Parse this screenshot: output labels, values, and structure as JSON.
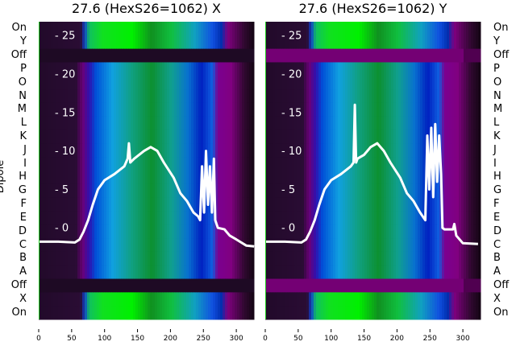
{
  "chart_data": [
    {
      "type": "heatmap",
      "title": "27.6 (HexS26=1062) X",
      "ylabel": "Dipole",
      "row_labels": [
        "On",
        "Y",
        "Off",
        "P",
        "O",
        "N",
        "M",
        "L",
        "K",
        "J",
        "I",
        "H",
        "G",
        "F",
        "E",
        "D",
        "C",
        "B",
        "A",
        "Off",
        "X",
        "On"
      ],
      "row_bands": [
        "on",
        "on",
        "off",
        "main",
        "main",
        "main",
        "main",
        "main",
        "main",
        "main",
        "main",
        "main",
        "main",
        "main",
        "main",
        "main",
        "main",
        "main",
        "main",
        "off",
        "on",
        "on"
      ],
      "off_color": "#1e0a24",
      "x_ticks": [
        "0",
        "50",
        "100",
        "150",
        "200",
        "250",
        "300"
      ],
      "xlim": [
        0,
        327
      ],
      "overlay_yticks": [
        "0",
        "5",
        "10",
        "15",
        "20",
        "25"
      ],
      "overlay_ylim": [
        -11.9,
        26.8
      ],
      "line": {
        "color": "#ffffff",
        "x": [
          0,
          30,
          55,
          62,
          68,
          75,
          82,
          90,
          100,
          115,
          130,
          135,
          137,
          139,
          145,
          160,
          170,
          180,
          190,
          205,
          215,
          225,
          235,
          242,
          245,
          248,
          251,
          254,
          257,
          260,
          263,
          266,
          268,
          272,
          282,
          290,
          300,
          315,
          327
        ],
        "y": [
          -1.8,
          -1.8,
          -1.9,
          -1.5,
          -0.5,
          1,
          3,
          5,
          6.2,
          7,
          8,
          9,
          11,
          8.5,
          9,
          10,
          10.5,
          10,
          8.5,
          6.5,
          4.5,
          3.5,
          2,
          1.5,
          1,
          8,
          2,
          10,
          3,
          8,
          2,
          9,
          1,
          0,
          -0.2,
          -1,
          -1.5,
          -2.3,
          -2.4
        ]
      }
    },
    {
      "type": "heatmap",
      "title": "27.6 (HexS26=1062) Y",
      "row_labels": [
        "On",
        "Y",
        "Off",
        "P",
        "O",
        "N",
        "M",
        "L",
        "K",
        "J",
        "I",
        "H",
        "G",
        "F",
        "E",
        "D",
        "C",
        "B",
        "A",
        "Off",
        "X",
        "On"
      ],
      "row_bands": [
        "on",
        "on",
        "off",
        "main",
        "main",
        "main",
        "main",
        "main",
        "main",
        "main",
        "main",
        "main",
        "main",
        "main",
        "main",
        "main",
        "main",
        "main",
        "main",
        "off",
        "on",
        "on"
      ],
      "off_color": "#740074",
      "x_ticks": [
        "0",
        "50",
        "100",
        "150",
        "200",
        "250",
        "300"
      ],
      "xlim": [
        0,
        323
      ],
      "overlay_yticks": [
        "0",
        "5",
        "10",
        "15",
        "20",
        "25"
      ],
      "overlay_ylim": [
        -11.9,
        26.8
      ],
      "line": {
        "color": "#ffffff",
        "x": [
          0,
          30,
          55,
          62,
          68,
          75,
          82,
          90,
          100,
          115,
          130,
          134,
          136,
          138,
          140,
          150,
          160,
          170,
          180,
          190,
          205,
          215,
          225,
          235,
          243,
          246,
          249,
          252,
          255,
          258,
          261,
          264,
          267,
          269,
          272,
          285,
          287,
          290,
          300,
          323
        ],
        "y": [
          -1.8,
          -1.8,
          -1.9,
          -1.5,
          -0.5,
          1,
          3,
          5,
          6.2,
          7,
          8,
          8.5,
          16,
          8.5,
          9,
          9.5,
          10.5,
          11,
          10,
          8.5,
          6.5,
          4.5,
          3.5,
          2,
          1,
          12,
          5,
          13,
          4,
          13.5,
          6,
          12,
          7,
          0,
          -0.2,
          -0.2,
          0.5,
          -1,
          -2,
          -2.1
        ]
      }
    }
  ],
  "colormap_main": [
    [
      0,
      "#220a2a"
    ],
    [
      55,
      "#2a0c34"
    ],
    [
      65,
      "#6a0078"
    ],
    [
      75,
      "#3010b0"
    ],
    [
      85,
      "#0050d8"
    ],
    [
      110,
      "#10a0e0"
    ],
    [
      140,
      "#10a080"
    ],
    [
      170,
      "#0c9030"
    ],
    [
      200,
      "#10a090"
    ],
    [
      225,
      "#0870d0"
    ],
    [
      245,
      "#0020c0"
    ],
    [
      262,
      "#1060e0"
    ],
    [
      270,
      "#7a0090"
    ],
    [
      290,
      "#800080"
    ],
    [
      310,
      "#300830"
    ],
    [
      327,
      "#100410"
    ]
  ],
  "colormap_on": [
    [
      0,
      "#220a2a"
    ],
    [
      62,
      "#2a0c34"
    ],
    [
      68,
      "#1040d0"
    ],
    [
      75,
      "#10c060"
    ],
    [
      95,
      "#10e020"
    ],
    [
      140,
      "#00f000"
    ],
    [
      170,
      "#109020"
    ],
    [
      200,
      "#10c040"
    ],
    [
      235,
      "#10a0c0"
    ],
    [
      262,
      "#1050e0"
    ],
    [
      275,
      "#0030b0"
    ],
    [
      285,
      "#800080"
    ],
    [
      310,
      "#300830"
    ],
    [
      327,
      "#100410"
    ]
  ]
}
